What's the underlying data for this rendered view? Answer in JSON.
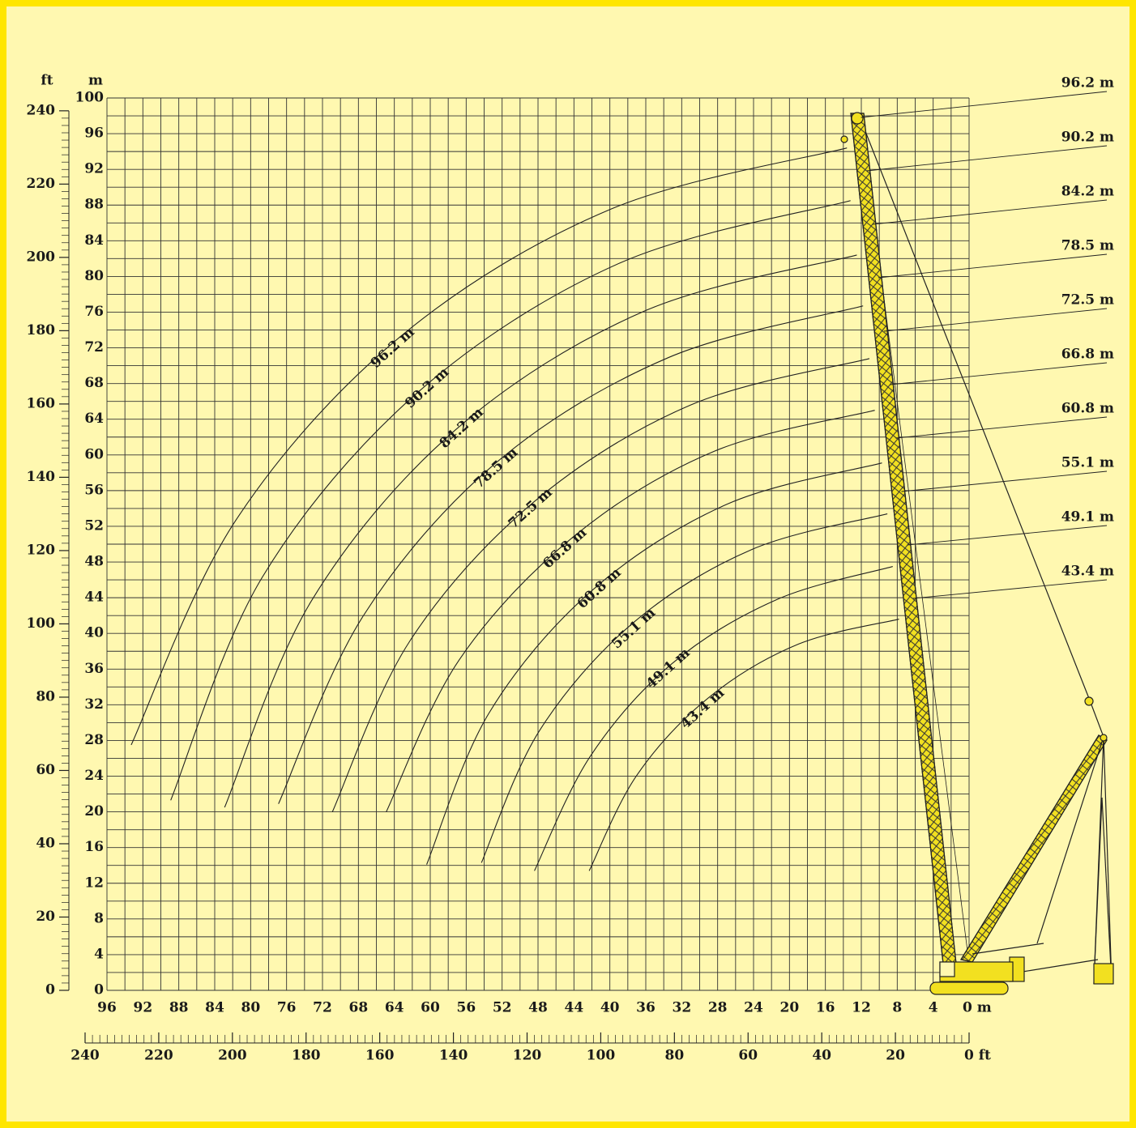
{
  "chart_data": {
    "type": "line",
    "y_unit": "m",
    "y2_unit": "ft",
    "xlim": [
      96,
      0
    ],
    "ylim": [
      0,
      100
    ],
    "xticks": [
      96,
      92,
      88,
      84,
      80,
      76,
      72,
      68,
      64,
      60,
      56,
      52,
      48,
      44,
      40,
      36,
      32,
      28,
      24,
      20,
      16,
      12,
      8,
      4,
      {
        "value": 0,
        "label": "0 m"
      }
    ],
    "yticks": [
      0,
      4,
      8,
      12,
      16,
      20,
      24,
      28,
      32,
      36,
      40,
      44,
      48,
      52,
      56,
      60,
      64,
      68,
      72,
      76,
      80,
      84,
      88,
      92,
      96,
      100
    ],
    "y2lim": [
      0,
      243.5
    ],
    "y2ticks": [
      0,
      20,
      40,
      60,
      80,
      100,
      120,
      140,
      160,
      180,
      200,
      220,
      240
    ],
    "x2lim": [
      240,
      0
    ],
    "x2ticks": [
      240,
      220,
      200,
      180,
      160,
      140,
      120,
      100,
      80,
      60,
      40,
      20,
      {
        "value": 0,
        "label": "0 ft"
      }
    ],
    "grid": true,
    "series": [
      {
        "name": "96.2 m",
        "color": "#222222",
        "x": [
          93.3,
          81.7,
          63.4,
          40.0,
          13.6
        ],
        "values": [
          27.5,
          52.6,
          73.2,
          87.5,
          94.4
        ]
      },
      {
        "name": "90.2 m",
        "color": "#222222",
        "x": [
          88.9,
          78.7,
          61.4,
          38.9,
          13.2
        ],
        "values": [
          21.3,
          46.3,
          67.0,
          81.5,
          88.5
        ]
      },
      {
        "name": "84.2 m",
        "color": "#222222",
        "x": [
          82.9,
          73.2,
          57.2,
          36.2,
          12.5
        ],
        "values": [
          20.5,
          43.7,
          62.8,
          76.1,
          82.4
        ]
      },
      {
        "name": "78.5 m",
        "color": "#222222",
        "x": [
          76.9,
          67.5,
          52.7,
          33.5,
          11.8
        ],
        "values": [
          20.9,
          41.9,
          59.1,
          70.9,
          76.7
        ]
      },
      {
        "name": "72.5 m",
        "color": "#222222",
        "x": [
          70.9,
          62.3,
          48.5,
          31.0,
          11.1
        ],
        "values": [
          20.0,
          39.1,
          54.7,
          65.6,
          70.8
        ]
      },
      {
        "name": "66.8 m",
        "color": "#222222",
        "x": [
          64.9,
          56.8,
          44.1,
          28.4,
          10.5
        ],
        "values": [
          20.0,
          37.0,
          50.8,
          60.4,
          65.0
        ]
      },
      {
        "name": "60.8 m",
        "color": "#222222",
        "x": [
          60.4,
          53.5,
          42.0,
          26.9,
          9.7
        ],
        "values": [
          14.1,
          31.0,
          44.8,
          54.5,
          59.1
        ]
      },
      {
        "name": "55.1 m",
        "color": "#222222",
        "x": [
          54.3,
          47.9,
          37.5,
          24.2,
          9.1
        ],
        "values": [
          14.3,
          29.0,
          41.1,
          49.4,
          53.4
        ]
      },
      {
        "name": "49.1 m",
        "color": "#222222",
        "x": [
          48.4,
          42.2,
          33.1,
          21.4,
          8.5
        ],
        "values": [
          13.4,
          26.2,
          36.6,
          43.8,
          47.5
        ]
      },
      {
        "name": "43.4 m",
        "color": "#222222",
        "x": [
          42.3,
          37.0,
          29.0,
          19.0,
          7.8
        ],
        "values": [
          13.4,
          24.1,
          32.8,
          38.8,
          41.6
        ]
      }
    ]
  }
}
